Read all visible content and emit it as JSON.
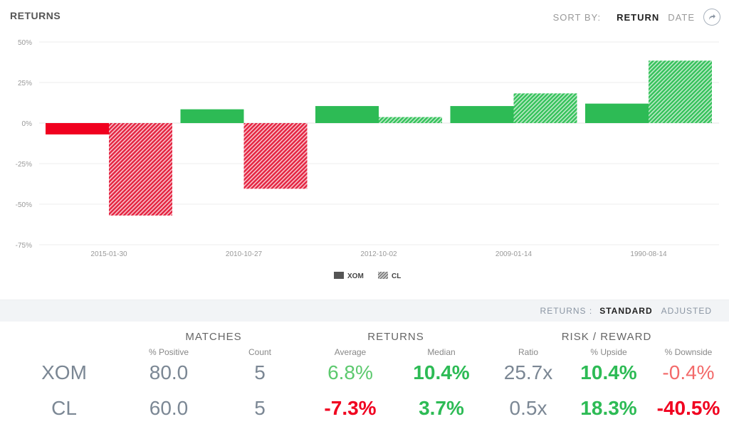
{
  "header": {
    "title": "RETURNS",
    "sort_label": "SORT BY:",
    "sort_return": "RETURN",
    "sort_date": "DATE"
  },
  "chart_data": {
    "type": "bar",
    "categories": [
      "2015-01-30",
      "2010-10-27",
      "2012-10-02",
      "2009-01-14",
      "1990-08-14"
    ],
    "series": [
      {
        "name": "XOM",
        "values": [
          -7,
          8.5,
          10.5,
          10.5,
          12
        ]
      },
      {
        "name": "CL",
        "values": [
          -57,
          -40.5,
          3.7,
          18.3,
          38.5
        ]
      }
    ],
    "ylim": [
      -75,
      50
    ],
    "yticks": [
      50,
      25,
      0,
      -25,
      -50,
      -75
    ],
    "ytick_labels": [
      "50%",
      "25%",
      "0%",
      "-25%",
      "-50%",
      "-75%"
    ],
    "legend": [
      "XOM",
      "CL"
    ],
    "colors": {
      "pos": "#2dbb55",
      "neg": "#f0001f",
      "pos_hatch": "#34c25a",
      "neg_hatch": "#e4223f"
    }
  },
  "mode": {
    "label": "RETURNS :",
    "standard": "STANDARD",
    "adjusted": "ADJUSTED"
  },
  "stats": {
    "groups": {
      "matches": "MATCHES",
      "returns": "RETURNS",
      "risk": "RISK / REWARD"
    },
    "columns": {
      "pct_positive": "% Positive",
      "count": "Count",
      "average": "Average",
      "median": "Median",
      "ratio": "Ratio",
      "upside": "% Upside",
      "downside": "% Downside"
    },
    "rows": [
      {
        "ticker": "XOM",
        "pct_positive": "80.0",
        "count": "5",
        "average": "6.8%",
        "median": "10.4%",
        "ratio": "25.7x",
        "upside": "10.4%",
        "downside": "-0.4%"
      },
      {
        "ticker": "CL",
        "pct_positive": "60.0",
        "count": "5",
        "average": "-7.3%",
        "median": "3.7%",
        "ratio": "0.5x",
        "upside": "18.3%",
        "downside": "-40.5%"
      }
    ]
  }
}
